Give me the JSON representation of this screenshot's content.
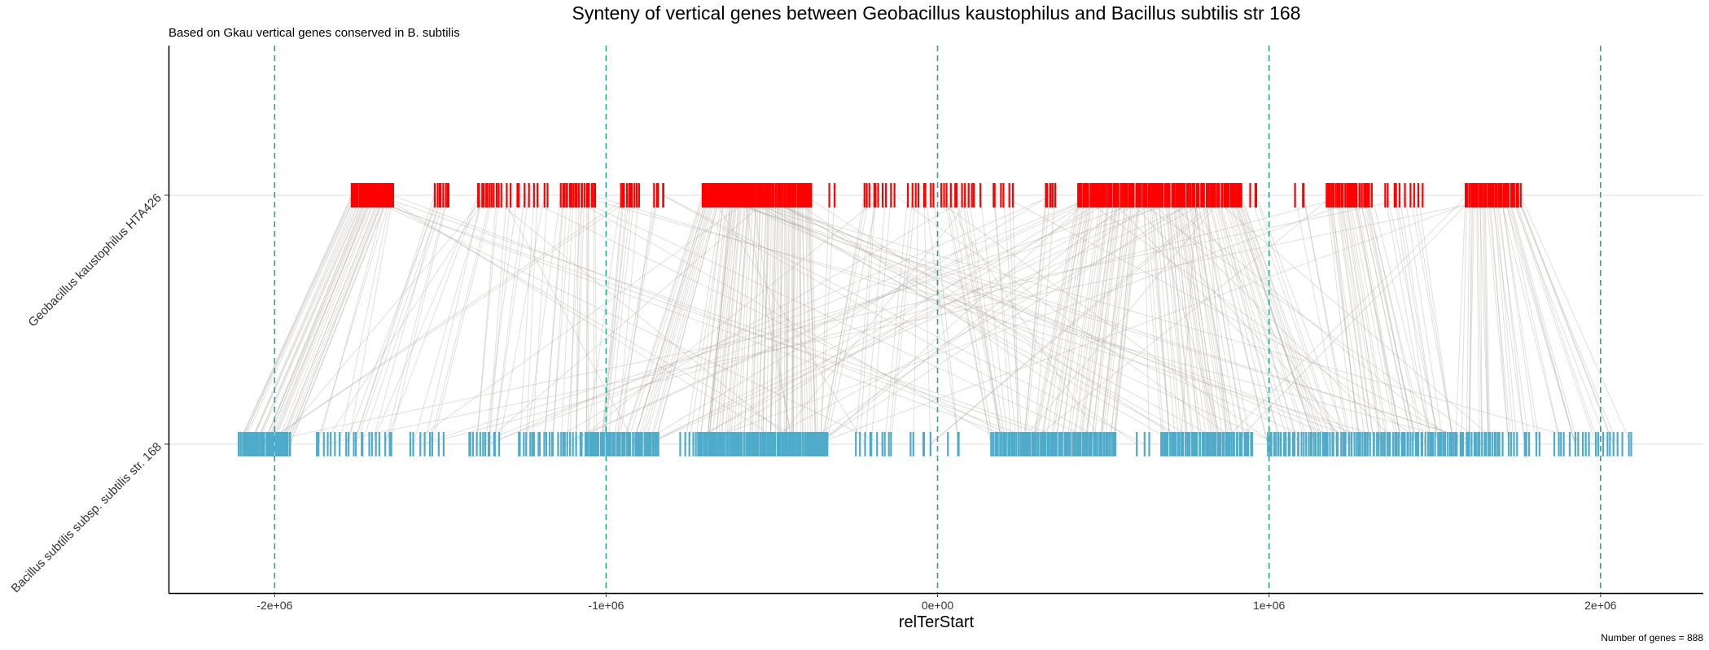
{
  "chart_data": {
    "type": "scatter",
    "title": "Synteny of vertical genes between Geobacillus kaustophilus and Bacillus subtilis str 168",
    "subtitle": "Based on Gkau vertical genes conserved in B. subtilis",
    "caption": "Number of genes = 888",
    "xlabel": "relTerStart",
    "ylabel": "",
    "xlim": [
      -2320000,
      2310000
    ],
    "x_ticks": [
      {
        "value": -2000000,
        "label": "-2e+06"
      },
      {
        "value": -1000000,
        "label": "-1e+06"
      },
      {
        "value": 0,
        "label": "0e+00"
      },
      {
        "value": 1000000,
        "label": "1e+06"
      },
      {
        "value": 2000000,
        "label": "2e+06"
      }
    ],
    "y_categories": [
      "Geobacillus kaustophilus HTA426",
      "Bacillus subtilis subsp. subtilis str. 168"
    ],
    "vertical_reference_lines": [
      -2000000,
      -1000000,
      0,
      1000000,
      2000000
    ],
    "grid": "horizontal only",
    "colors": {
      "geobacillus": "#ff0000",
      "bacillus": "#4fabca",
      "links": "#a8a29e",
      "reference_lines": "#2ca58d",
      "axis": "#000000"
    },
    "series": [
      {
        "name": "Geobacillus kaustophilus HTA426",
        "density_segments": [
          {
            "from": -1770000,
            "to": -1640000,
            "count": 40
          },
          {
            "from": -1520000,
            "to": -1470000,
            "count": 8
          },
          {
            "from": -1390000,
            "to": -1330000,
            "count": 10
          },
          {
            "from": -1330000,
            "to": -1170000,
            "count": 12
          },
          {
            "from": -1140000,
            "to": -1030000,
            "count": 20
          },
          {
            "from": -960000,
            "to": -900000,
            "count": 10
          },
          {
            "from": -860000,
            "to": -820000,
            "count": 5
          },
          {
            "from": -710000,
            "to": -520000,
            "count": 60
          },
          {
            "from": -520000,
            "to": -380000,
            "count": 40
          },
          {
            "from": -330000,
            "to": -310000,
            "count": 2
          },
          {
            "from": -230000,
            "to": -130000,
            "count": 10
          },
          {
            "from": -90000,
            "to": -10000,
            "count": 8
          },
          {
            "from": 0,
            "to": 130000,
            "count": 12
          },
          {
            "from": 160000,
            "to": 230000,
            "count": 6
          },
          {
            "from": 320000,
            "to": 360000,
            "count": 6
          },
          {
            "from": 420000,
            "to": 920000,
            "count": 120
          },
          {
            "from": 940000,
            "to": 970000,
            "count": 3
          },
          {
            "from": 1070000,
            "to": 1120000,
            "count": 3
          },
          {
            "from": 1170000,
            "to": 1310000,
            "count": 30
          },
          {
            "from": 1340000,
            "to": 1470000,
            "count": 10
          },
          {
            "from": 1590000,
            "to": 1760000,
            "count": 40
          }
        ],
        "point_count": 888
      },
      {
        "name": "Bacillus subtilis subsp. subtilis str. 168",
        "density_segments": [
          {
            "from": -2110000,
            "to": -1950000,
            "count": 45
          },
          {
            "from": -1880000,
            "to": -1640000,
            "count": 20
          },
          {
            "from": -1600000,
            "to": -1480000,
            "count": 8
          },
          {
            "from": -1420000,
            "to": -1320000,
            "count": 12
          },
          {
            "from": -1270000,
            "to": -1060000,
            "count": 25
          },
          {
            "from": -1060000,
            "to": -840000,
            "count": 50
          },
          {
            "from": -790000,
            "to": -730000,
            "count": 4
          },
          {
            "from": -730000,
            "to": -330000,
            "count": 110
          },
          {
            "from": -250000,
            "to": -130000,
            "count": 10
          },
          {
            "from": -90000,
            "to": -10000,
            "count": 5
          },
          {
            "from": 30000,
            "to": 80000,
            "count": 3
          },
          {
            "from": 160000,
            "to": 540000,
            "count": 90
          },
          {
            "from": 600000,
            "to": 650000,
            "count": 3
          },
          {
            "from": 670000,
            "to": 950000,
            "count": 60
          },
          {
            "from": 990000,
            "to": 1120000,
            "count": 20
          },
          {
            "from": 1120000,
            "to": 1700000,
            "count": 95
          },
          {
            "from": 1700000,
            "to": 1820000,
            "count": 10
          },
          {
            "from": 1850000,
            "to": 2100000,
            "count": 20
          }
        ],
        "point_count": 888
      }
    ]
  }
}
